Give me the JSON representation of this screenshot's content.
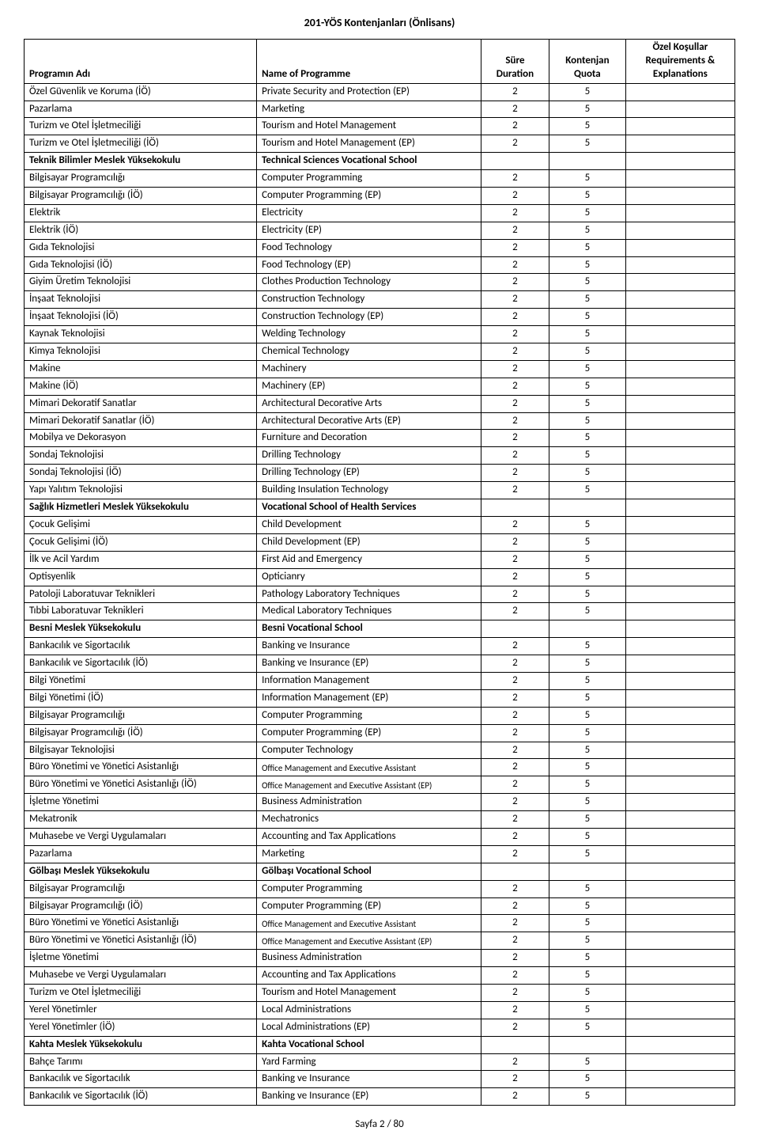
{
  "title": "201-YÖS Kontenjanları (Önlisans)",
  "footer": "Sayfa 2 / 80",
  "headers": {
    "program": "Programın Adı",
    "name": "Name of Programme",
    "duration_top": "Süre",
    "duration_bot": "Duration",
    "quota_top": "Kontenjan",
    "quota_bot": "Quota",
    "req_top": "Özel Koşullar",
    "req_mid": "Requirements &",
    "req_bot": "Explanations"
  },
  "rows": [
    {
      "p": "Özel Güvenlik ve Koruma (İÖ)",
      "n": "Private Security and Protection (EP)",
      "d": "2",
      "q": "5"
    },
    {
      "p": "Pazarlama",
      "n": "Marketing",
      "d": "2",
      "q": "5"
    },
    {
      "p": "Turizm ve Otel İşletmeciliği",
      "n": "Tourism and Hotel Management",
      "d": "2",
      "q": "5"
    },
    {
      "p": "Turizm ve Otel İşletmeciliği (İÖ)",
      "n": "Tourism and Hotel Management (EP)",
      "d": "2",
      "q": "5"
    },
    {
      "p": "Teknik Bilimler Meslek Yüksekokulu",
      "n": "Technical Sciences Vocational School",
      "d": "",
      "q": "",
      "bold": true
    },
    {
      "p": "Bilgisayar Programcılığı",
      "n": "Computer Programming",
      "d": "2",
      "q": "5"
    },
    {
      "p": "Bilgisayar Programcılığı (İÖ)",
      "n": "Computer Programming (EP)",
      "d": "2",
      "q": "5"
    },
    {
      "p": "Elektrik",
      "n": "Electricity",
      "d": "2",
      "q": "5"
    },
    {
      "p": "Elektrik (İÖ)",
      "n": "Electricity (EP)",
      "d": "2",
      "q": "5"
    },
    {
      "p": "Gıda Teknolojisi",
      "n": "Food Technology",
      "d": "2",
      "q": "5"
    },
    {
      "p": "Gıda Teknolojisi (İÖ)",
      "n": "Food Technology (EP)",
      "d": "2",
      "q": "5"
    },
    {
      "p": "Giyim Üretim Teknolojisi",
      "n": "Clothes Production Technology",
      "d": "2",
      "q": "5"
    },
    {
      "p": "İnşaat Teknolojisi",
      "n": "Construction Technology",
      "d": "2",
      "q": "5"
    },
    {
      "p": "İnşaat Teknolojisi (İÖ)",
      "n": "Construction Technology (EP)",
      "d": "2",
      "q": "5"
    },
    {
      "p": "Kaynak Teknolojisi",
      "n": "Welding Technology",
      "d": "2",
      "q": "5"
    },
    {
      "p": "Kimya Teknolojisi",
      "n": "Chemical Technology",
      "d": "2",
      "q": "5"
    },
    {
      "p": "Makine",
      "n": "Machinery",
      "d": "2",
      "q": "5"
    },
    {
      "p": "Makine (İÖ)",
      "n": "Machinery (EP)",
      "d": "2",
      "q": "5"
    },
    {
      "p": "Mimari Dekoratif Sanatlar",
      "n": "Architectural Decorative Arts",
      "d": "2",
      "q": "5"
    },
    {
      "p": "Mimari Dekoratif Sanatlar (İÖ)",
      "n": "Architectural Decorative Arts (EP)",
      "d": "2",
      "q": "5"
    },
    {
      "p": "Mobilya ve Dekorasyon",
      "n": "Furniture and Decoration",
      "d": "2",
      "q": "5"
    },
    {
      "p": "Sondaj Teknolojisi",
      "n": "Drilling Technology",
      "d": "2",
      "q": "5"
    },
    {
      "p": "Sondaj Teknolojisi (İÖ)",
      "n": "Drilling Technology (EP)",
      "d": "2",
      "q": "5"
    },
    {
      "p": "Yapı Yalıtım Teknolojisi",
      "n": "Building Insulation Technology",
      "d": "2",
      "q": "5"
    },
    {
      "p": "Sağlık Hizmetleri Meslek Yüksekokulu",
      "n": "Vocational School of Health Services",
      "d": "",
      "q": "",
      "bold": true
    },
    {
      "p": "Çocuk Gelişimi",
      "n": "Child Development",
      "d": "2",
      "q": "5"
    },
    {
      "p": "Çocuk Gelişimi (İÖ)",
      "n": "Child Development (EP)",
      "d": "2",
      "q": "5"
    },
    {
      "p": "İlk ve Acil Yardım",
      "n": "First Aid and Emergency",
      "d": "2",
      "q": "5"
    },
    {
      "p": "Optisyenlik",
      "n": "Opticianry",
      "d": "2",
      "q": "5"
    },
    {
      "p": "Patoloji Laboratuvar Teknikleri",
      "n": "Pathology Laboratory Techniques",
      "d": "2",
      "q": "5"
    },
    {
      "p": "Tıbbi Laboratuvar Teknikleri",
      "n": "Medical Laboratory Techniques",
      "d": "2",
      "q": "5"
    },
    {
      "p": "Besni Meslek Yüksekokulu",
      "n": "Besni Vocational School",
      "d": "",
      "q": "",
      "bold": true
    },
    {
      "p": "Bankacılık ve Sigortacılık",
      "n": "Banking ve Insurance",
      "d": "2",
      "q": "5"
    },
    {
      "p": "Bankacılık ve Sigortacılık (İÖ)",
      "n": "Banking ve Insurance (EP)",
      "d": "2",
      "q": "5"
    },
    {
      "p": "Bilgi Yönetimi",
      "n": "Information Management",
      "d": "2",
      "q": "5"
    },
    {
      "p": "Bilgi Yönetimi (İÖ)",
      "n": "Information Management (EP)",
      "d": "2",
      "q": "5"
    },
    {
      "p": "Bilgisayar Programcılığı",
      "n": "Computer Programming",
      "d": "2",
      "q": "5"
    },
    {
      "p": "Bilgisayar Programcılığı (İÖ)",
      "n": "Computer Programming (EP)",
      "d": "2",
      "q": "5"
    },
    {
      "p": "Bilgisayar Teknolojisi",
      "n": "Computer Technology",
      "d": "2",
      "q": "5"
    },
    {
      "p": "Büro Yönetimi ve Yönetici Asistanlığı",
      "n": "Office Management and Executive Assistant",
      "d": "2",
      "q": "5",
      "small": true
    },
    {
      "p": "Büro Yönetimi ve Yönetici Asistanlığı (İÖ)",
      "n": "Office Management and Executive Assistant (EP)",
      "d": "2",
      "q": "5",
      "small": true
    },
    {
      "p": "İşletme Yönetimi",
      "n": "Business Administration",
      "d": "2",
      "q": "5"
    },
    {
      "p": "Mekatronik",
      "n": "Mechatronics",
      "d": "2",
      "q": "5"
    },
    {
      "p": "Muhasebe ve Vergi Uygulamaları",
      "n": "Accounting and Tax Applications",
      "d": "2",
      "q": "5"
    },
    {
      "p": "Pazarlama",
      "n": "Marketing",
      "d": "2",
      "q": "5"
    },
    {
      "p": "Gölbaşı Meslek Yüksekokulu",
      "n": "Gölbaşı Vocational School",
      "d": "",
      "q": "",
      "bold": true
    },
    {
      "p": "Bilgisayar Programcılığı",
      "n": "Computer Programming",
      "d": "2",
      "q": "5"
    },
    {
      "p": "Bilgisayar Programcılığı (İÖ)",
      "n": "Computer Programming (EP)",
      "d": "2",
      "q": "5"
    },
    {
      "p": "Büro Yönetimi ve Yönetici Asistanlığı",
      "n": "Office Management and Executive Assistant",
      "d": "2",
      "q": "5",
      "small": true
    },
    {
      "p": "Büro Yönetimi ve Yönetici Asistanlığı (İÖ)",
      "n": "Office Management and Executive Assistant (EP)",
      "d": "2",
      "q": "5",
      "small": true
    },
    {
      "p": "İşletme Yönetimi",
      "n": "Business Administration",
      "d": "2",
      "q": "5"
    },
    {
      "p": "Muhasebe ve Vergi Uygulamaları",
      "n": "Accounting and Tax Applications",
      "d": "2",
      "q": "5"
    },
    {
      "p": "Turizm ve Otel İşletmeciliği",
      "n": "Tourism and Hotel Management",
      "d": "2",
      "q": "5"
    },
    {
      "p": "Yerel Yönetimler",
      "n": "Local Administrations",
      "d": "2",
      "q": "5"
    },
    {
      "p": "Yerel Yönetimler (İÖ)",
      "n": "Local Administrations (EP)",
      "d": "2",
      "q": "5"
    },
    {
      "p": "Kahta Meslek Yüksekokulu",
      "n": "Kahta Vocational School",
      "d": "",
      "q": "",
      "bold": true
    },
    {
      "p": "Bahçe Tarımı",
      "n": "Yard Farming",
      "d": "2",
      "q": "5"
    },
    {
      "p": "Bankacılık ve Sigortacılık",
      "n": "Banking ve Insurance",
      "d": "2",
      "q": "5"
    },
    {
      "p": "Bankacılık ve Sigortacılık (İÖ)",
      "n": "Banking ve Insurance (EP)",
      "d": "2",
      "q": "5"
    }
  ]
}
